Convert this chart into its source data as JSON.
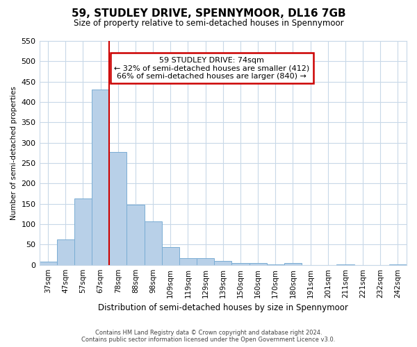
{
  "title_line1": "59, STUDLEY DRIVE, SPENNYMOOR, DL16 7GB",
  "title_line2": "Size of property relative to semi-detached houses in Spennymoor",
  "xlabel": "Distribution of semi-detached houses by size in Spennymoor",
  "ylabel": "Number of semi-detached properties",
  "categories": [
    "37sqm",
    "47sqm",
    "57sqm",
    "67sqm",
    "78sqm",
    "88sqm",
    "98sqm",
    "109sqm",
    "119sqm",
    "129sqm",
    "139sqm",
    "150sqm",
    "160sqm",
    "170sqm",
    "180sqm",
    "191sqm",
    "201sqm",
    "211sqm",
    "221sqm",
    "232sqm",
    "242sqm"
  ],
  "values": [
    8,
    62,
    163,
    430,
    277,
    148,
    107,
    43,
    17,
    16,
    10,
    4,
    4,
    1,
    4,
    0,
    0,
    1,
    0,
    0,
    1
  ],
  "bar_color": "#b8d0e8",
  "bar_edge_color": "#7aadd4",
  "vline_color": "#cc0000",
  "vline_x": 3.5,
  "annotation_text_line1": "59 STUDLEY DRIVE: 74sqm",
  "annotation_text_line2": "← 32% of semi-detached houses are smaller (412)",
  "annotation_text_line3": "66% of semi-detached houses are larger (840) →",
  "annotation_box_color": "#ffffff",
  "annotation_box_edge": "#cc0000",
  "ylim": [
    0,
    550
  ],
  "yticks": [
    0,
    50,
    100,
    150,
    200,
    250,
    300,
    350,
    400,
    450,
    500,
    550
  ],
  "footer_line1": "Contains HM Land Registry data © Crown copyright and database right 2024.",
  "footer_line2": "Contains public sector information licensed under the Open Government Licence v3.0.",
  "bg_color": "#ffffff",
  "grid_color": "#c8d8e8"
}
